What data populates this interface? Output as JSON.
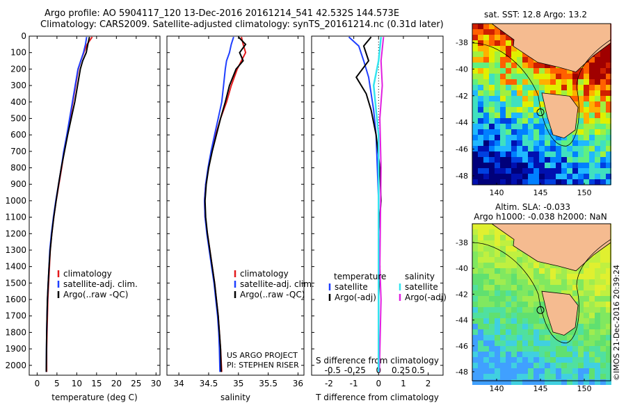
{
  "header": {
    "line1": "Argo profile: AO 5904117_120 13-Dec-2016 20161214_541 42.532S 144.573E",
    "line2": "Climatology: CARS2009. Satellite-adjusted climatology: synTS_20161214.nc (0.31d later)"
  },
  "credits": {
    "project": "US ARGO PROJECT",
    "pi": "PI: STEPHEN RISER",
    "copyright": "©IMOS 21-Dec-2016 20:39:24"
  },
  "colors": {
    "climatology": "#e31a1c",
    "satellite": "#1f3fff",
    "argo": "#000000",
    "sal_satellite": "#33e5f0",
    "sal_argo": "#e020e0"
  },
  "chart_data": [
    {
      "type": "line",
      "xlabel": "temperature (deg C)",
      "ylabel": "",
      "xticks": [
        "0",
        "5",
        "10",
        "15",
        "20",
        "25",
        "30"
      ],
      "yticks": [
        "0",
        "100",
        "200",
        "300",
        "400",
        "500",
        "600",
        "700",
        "800",
        "900",
        "1000",
        "1100",
        "1200",
        "1300",
        "1400",
        "1500",
        "1600",
        "1700",
        "1800",
        "1900",
        "2000"
      ],
      "xlim": [
        -2,
        31
      ],
      "ylim": [
        2060,
        0
      ],
      "legend": [
        "climatology",
        "satellite-adj. clim.",
        "Argo(..raw -QC)"
      ],
      "series": [
        {
          "name": "climatology",
          "color": "#e31a1c",
          "x": [
            13.9,
            12.6,
            11.8,
            11.0,
            10.4,
            9.7,
            9.0,
            8.3,
            7.6,
            6.8,
            6.2,
            5.5,
            4.8,
            4.2,
            3.7,
            3.3,
            3.1,
            2.9,
            2.7,
            2.6,
            2.5,
            2.4,
            2.4
          ],
          "y": [
            5,
            50,
            100,
            150,
            200,
            300,
            400,
            500,
            600,
            700,
            800,
            900,
            1000,
            1100,
            1200,
            1300,
            1400,
            1500,
            1600,
            1700,
            1800,
            1900,
            2040
          ]
        },
        {
          "name": "satellite-adj. clim.",
          "color": "#1f3fff",
          "x": [
            12.5,
            12.2,
            11.7,
            11.0,
            10.3,
            9.6,
            8.9,
            8.2,
            7.5,
            6.7,
            6.1,
            5.4,
            4.7,
            4.1,
            3.6,
            3.2,
            3.0,
            2.8,
            2.6,
            2.5,
            2.4,
            2.35,
            2.3
          ],
          "y": [
            5,
            50,
            100,
            150,
            200,
            300,
            400,
            500,
            600,
            700,
            800,
            900,
            1000,
            1100,
            1200,
            1300,
            1400,
            1500,
            1600,
            1700,
            1800,
            1900,
            2040
          ]
        },
        {
          "name": "Argo(..raw -QC)",
          "color": "#000000",
          "x": [
            13.2,
            12.8,
            12.4,
            11.5,
            10.9,
            10.2,
            9.5,
            8.6,
            7.7,
            6.9,
            6.1,
            5.4,
            4.8,
            4.2,
            3.7,
            3.3,
            3.0,
            2.8,
            2.6,
            2.5,
            2.4,
            2.35,
            2.3
          ],
          "y": [
            5,
            50,
            100,
            150,
            200,
            300,
            400,
            500,
            600,
            700,
            800,
            900,
            1000,
            1100,
            1200,
            1300,
            1400,
            1500,
            1600,
            1700,
            1800,
            1900,
            2040
          ]
        }
      ]
    },
    {
      "type": "line",
      "xlabel": "salinity",
      "xticks": [
        "34",
        "34.5",
        "35",
        "35.5",
        "36"
      ],
      "xlim": [
        33.8,
        36.1
      ],
      "ylim": [
        2060,
        0
      ],
      "legend": [
        "climatology",
        "satellite-adj. clim.",
        "Argo(..raw -QC)"
      ],
      "series": [
        {
          "name": "climatology",
          "color": "#e31a1c",
          "x": [
            35.05,
            35.08,
            35.12,
            35.05,
            34.98,
            34.88,
            34.8,
            34.7,
            34.62,
            34.55,
            34.5,
            34.45,
            34.43,
            34.44,
            34.48,
            34.52,
            34.56,
            34.6,
            34.63,
            34.66,
            34.68,
            34.7,
            34.72
          ],
          "y": [
            5,
            50,
            100,
            150,
            200,
            300,
            400,
            500,
            600,
            700,
            800,
            900,
            1000,
            1100,
            1200,
            1300,
            1400,
            1500,
            1600,
            1700,
            1800,
            1900,
            2040
          ]
        },
        {
          "name": "satellite-adj. clim.",
          "color": "#1f3fff",
          "x": [
            34.92,
            34.88,
            34.85,
            34.8,
            34.78,
            34.75,
            34.72,
            34.66,
            34.6,
            34.54,
            34.49,
            34.45,
            34.43,
            34.44,
            34.47,
            34.51,
            34.55,
            34.59,
            34.62,
            34.65,
            34.67,
            34.68,
            34.69
          ],
          "y": [
            5,
            50,
            100,
            150,
            200,
            300,
            400,
            500,
            600,
            700,
            800,
            900,
            1000,
            1100,
            1200,
            1300,
            1400,
            1500,
            1600,
            1700,
            1800,
            1900,
            2040
          ]
        },
        {
          "name": "Argo(..raw -QC)",
          "color": "#000000",
          "x": [
            35.0,
            35.12,
            35.02,
            35.08,
            34.96,
            34.85,
            34.78,
            34.7,
            34.63,
            34.56,
            34.5,
            34.46,
            34.44,
            34.45,
            34.48,
            34.52,
            34.56,
            34.6,
            34.63,
            34.66,
            34.68,
            34.7,
            34.71
          ],
          "y": [
            5,
            50,
            100,
            150,
            200,
            300,
            400,
            500,
            600,
            700,
            800,
            900,
            1000,
            1100,
            1200,
            1300,
            1400,
            1500,
            1600,
            1700,
            1800,
            1900,
            2040
          ]
        }
      ]
    },
    {
      "type": "line",
      "xlabel": "T difference from climatology",
      "toplabel": "S difference from climatology",
      "xticks_T": [
        "-2",
        "-1",
        "0",
        "1",
        "2"
      ],
      "xticks_S": [
        "-0.5",
        "-0.25",
        "0",
        "0.25",
        "0.5"
      ],
      "xlim": [
        -2.7,
        2.6
      ],
      "ylim": [
        2060,
        0
      ],
      "legend_T": {
        "head": "temperature",
        "items": [
          "satellite",
          "Argo(-adj)"
        ]
      },
      "legend_S": {
        "head": "salinity",
        "items": [
          "satellite",
          "Argo(-adj)"
        ]
      },
      "series": [
        {
          "name": "satellite",
          "color": "#1f3fff",
          "x": [
            -1.2,
            -0.8,
            -0.6,
            -0.4,
            -0.3,
            -0.2,
            -0.1,
            -0.05,
            0.0,
            0.0,
            0.0,
            0.0,
            0.0,
            0.0
          ],
          "y": [
            5,
            60,
            150,
            250,
            350,
            450,
            600,
            800,
            1000,
            1200,
            1400,
            1600,
            1800,
            2040
          ]
        },
        {
          "name": "Argo(-adj)",
          "color": "#000000",
          "x": [
            -0.3,
            -0.6,
            -0.4,
            -0.9,
            -0.5,
            -0.3,
            -0.1,
            0.05,
            0.1,
            0.0,
            0.05,
            0.0,
            0.0,
            0.0
          ],
          "y": [
            5,
            60,
            150,
            250,
            350,
            450,
            600,
            800,
            1000,
            1200,
            1400,
            1600,
            1800,
            2040
          ]
        }
      ]
    },
    {
      "type": "heatmap",
      "title": "sat. SST: 12.8 Argo: 13.2",
      "xticks": [
        "140",
        "145",
        "150"
      ],
      "yticks": [
        "-38",
        "-40",
        "-42",
        "-44",
        "-46",
        "-48"
      ]
    },
    {
      "type": "heatmap",
      "title_line1": "Altim. SLA: -0.033",
      "title_line2": "Argo h1000: -0.038 h2000: NaN",
      "xticks": [
        "140",
        "145",
        "150"
      ],
      "yticks": [
        "-38",
        "-40",
        "-42",
        "-44",
        "-46",
        "-48"
      ]
    }
  ]
}
